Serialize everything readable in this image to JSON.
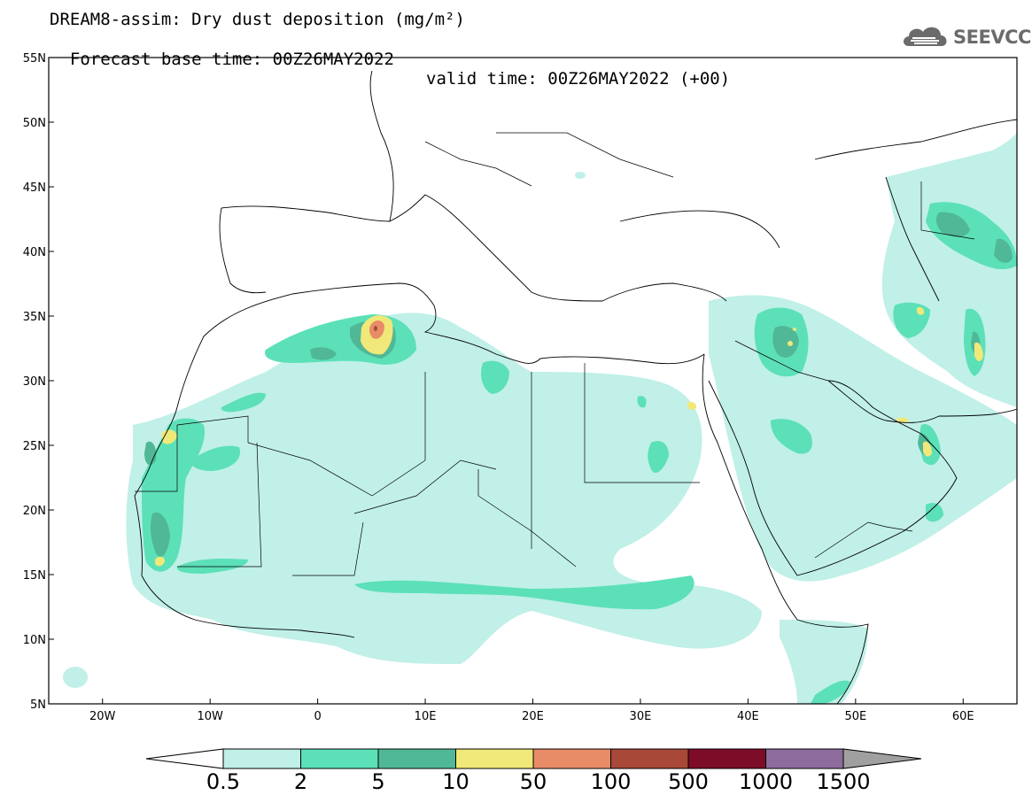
{
  "title": {
    "line1": "DREAM8-assim: Dry dust deposition (mg/m²)",
    "base_time": "Forecast base time: 00Z26MAY2022",
    "valid_time": "valid time: 00Z26MAY2022 (+00)"
  },
  "logo": {
    "text": "SEEVCCC",
    "icon": "cloud-logo-icon"
  },
  "map": {
    "lon_range": [
      -25,
      65
    ],
    "lat_range": [
      5,
      55
    ],
    "lat_ticks": [
      {
        "value": 55,
        "label": "55N"
      },
      {
        "value": 50,
        "label": "50N"
      },
      {
        "value": 45,
        "label": "45N"
      },
      {
        "value": 40,
        "label": "40N"
      },
      {
        "value": 35,
        "label": "35N"
      },
      {
        "value": 30,
        "label": "30N"
      },
      {
        "value": 25,
        "label": "25N"
      },
      {
        "value": 20,
        "label": "20N"
      },
      {
        "value": 15,
        "label": "15N"
      },
      {
        "value": 10,
        "label": "10N"
      },
      {
        "value": 5,
        "label": "5N"
      }
    ],
    "lon_ticks": [
      {
        "value": -20,
        "label": "20W"
      },
      {
        "value": -10,
        "label": "10W"
      },
      {
        "value": 0,
        "label": "0"
      },
      {
        "value": 10,
        "label": "10E"
      },
      {
        "value": 20,
        "label": "20E"
      },
      {
        "value": 30,
        "label": "30E"
      },
      {
        "value": 40,
        "label": "40E"
      },
      {
        "value": 50,
        "label": "50E"
      },
      {
        "value": 60,
        "label": "60E"
      }
    ]
  },
  "colorbar": {
    "labels": [
      "0.5",
      "2",
      "5",
      "10",
      "50",
      "100",
      "500",
      "1000",
      "1500"
    ],
    "colors": [
      "#c0f0e8",
      "#5ce0b8",
      "#50b896",
      "#f0e878",
      "#e88c68",
      "#a84838",
      "#7c0c28",
      "#8c6c9c"
    ],
    "under_color": "#ffffff",
    "over_color": "#a0a0a0"
  }
}
